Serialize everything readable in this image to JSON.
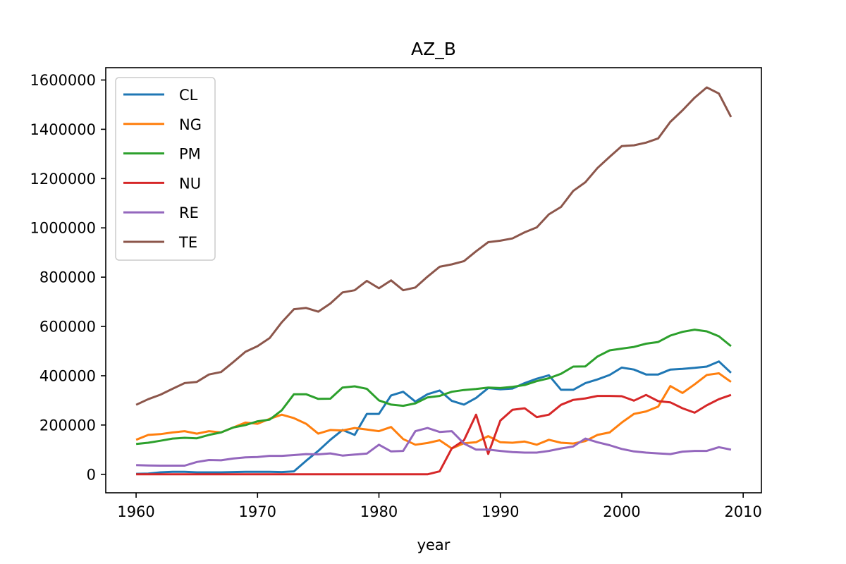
{
  "chart_data": {
    "type": "line",
    "title": "AZ_B",
    "xlabel": "year",
    "ylabel": "",
    "xlim": [
      1957.5,
      2011.5
    ],
    "ylim": [
      -75000,
      1650000
    ],
    "xticks": [
      1960,
      1970,
      1980,
      1990,
      2000,
      2010
    ],
    "yticks": [
      0,
      200000,
      400000,
      600000,
      800000,
      1000000,
      1200000,
      1400000,
      1600000
    ],
    "grid": false,
    "legend_position": "top-left",
    "x": [
      1960,
      1961,
      1962,
      1963,
      1964,
      1965,
      1966,
      1967,
      1968,
      1969,
      1970,
      1971,
      1972,
      1973,
      1974,
      1975,
      1976,
      1977,
      1978,
      1979,
      1980,
      1981,
      1982,
      1983,
      1984,
      1985,
      1986,
      1987,
      1988,
      1989,
      1990,
      1991,
      1992,
      1993,
      1994,
      1995,
      1996,
      1997,
      1998,
      1999,
      2000,
      2001,
      2002,
      2003,
      2004,
      2005,
      2006,
      2007,
      2008,
      2009
    ],
    "series": [
      {
        "name": "CL",
        "color": "#1f77b4",
        "values": [
          2000,
          3000,
          8000,
          10000,
          10000,
          8000,
          8000,
          8000,
          9000,
          10000,
          10000,
          10000,
          9000,
          12000,
          55000,
          95000,
          140000,
          180000,
          160000,
          245000,
          245000,
          320000,
          335000,
          295000,
          325000,
          340000,
          298000,
          283000,
          310000,
          350000,
          345000,
          348000,
          370000,
          388000,
          402000,
          343000,
          343000,
          370000,
          385000,
          403000,
          433000,
          425000,
          405000,
          405000,
          425000,
          428000,
          432000,
          437000,
          458000,
          412000
        ]
      },
      {
        "name": "NG",
        "color": "#ff7f0e",
        "values": [
          140000,
          160000,
          163000,
          170000,
          175000,
          165000,
          175000,
          170000,
          190000,
          210000,
          205000,
          225000,
          242000,
          228000,
          205000,
          165000,
          180000,
          178000,
          188000,
          182000,
          175000,
          192000,
          143000,
          120000,
          127000,
          138000,
          105000,
          126000,
          130000,
          155000,
          130000,
          128000,
          133000,
          120000,
          140000,
          128000,
          125000,
          135000,
          160000,
          170000,
          210000,
          245000,
          255000,
          275000,
          358000,
          330000,
          365000,
          403000,
          410000,
          375000
        ]
      },
      {
        "name": "PM",
        "color": "#2ca02c",
        "values": [
          123000,
          128000,
          136000,
          145000,
          148000,
          146000,
          160000,
          170000,
          190000,
          200000,
          215000,
          222000,
          260000,
          325000,
          325000,
          306000,
          307000,
          352000,
          357000,
          347000,
          300000,
          283000,
          278000,
          288000,
          312000,
          318000,
          335000,
          342000,
          346000,
          352000,
          350000,
          355000,
          362000,
          378000,
          390000,
          408000,
          437000,
          438000,
          478000,
          503000,
          510000,
          517000,
          530000,
          537000,
          563000,
          578000,
          587000,
          580000,
          560000,
          520000
        ]
      },
      {
        "name": "NU",
        "color": "#d62728",
        "values": [
          0,
          0,
          0,
          0,
          0,
          0,
          0,
          0,
          0,
          0,
          0,
          0,
          0,
          0,
          0,
          0,
          0,
          0,
          0,
          0,
          0,
          0,
          0,
          0,
          0,
          12000,
          105000,
          138000,
          242000,
          83000,
          218000,
          262000,
          268000,
          232000,
          242000,
          282000,
          302000,
          308000,
          318000,
          318000,
          317000,
          299000,
          322000,
          297000,
          292000,
          268000,
          250000,
          280000,
          305000,
          322000
        ]
      },
      {
        "name": "RE",
        "color": "#9467bd",
        "values": [
          37000,
          36000,
          35000,
          35000,
          35000,
          50000,
          58000,
          57000,
          64000,
          69000,
          70000,
          75000,
          75000,
          78000,
          82000,
          81000,
          85000,
          76000,
          80000,
          84000,
          120000,
          93000,
          95000,
          175000,
          188000,
          172000,
          175000,
          125000,
          100000,
          100000,
          95000,
          90000,
          88000,
          88000,
          95000,
          105000,
          113000,
          145000,
          130000,
          118000,
          103000,
          93000,
          88000,
          85000,
          82000,
          92000,
          95000,
          95000,
          110000,
          100000
        ]
      },
      {
        "name": "TE",
        "color": "#8c564b",
        "values": [
          282000,
          305000,
          323000,
          347000,
          370000,
          375000,
          405000,
          415000,
          455000,
          497000,
          520000,
          553000,
          617000,
          670000,
          675000,
          660000,
          693000,
          738000,
          747000,
          785000,
          755000,
          787000,
          747000,
          758000,
          802000,
          842000,
          852000,
          865000,
          905000,
          942000,
          948000,
          957000,
          982000,
          1002000,
          1055000,
          1085000,
          1150000,
          1185000,
          1243000,
          1288000,
          1332000,
          1335000,
          1346000,
          1363000,
          1430000,
          1477000,
          1528000,
          1570000,
          1545000,
          1450000
        ]
      }
    ]
  }
}
